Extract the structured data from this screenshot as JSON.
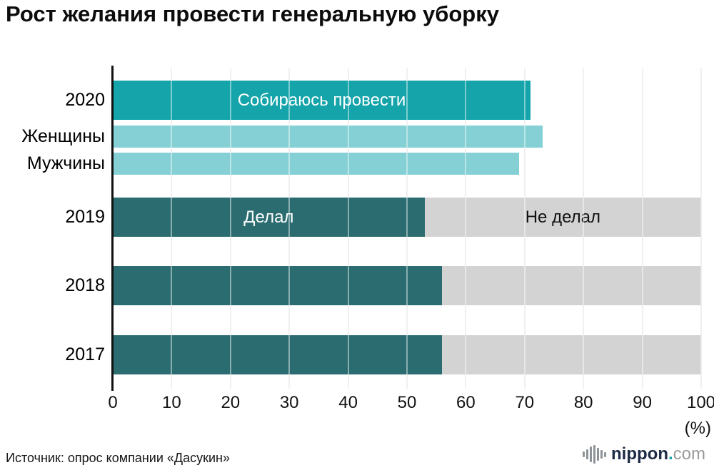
{
  "title": "Рост желания провести генеральную уборку",
  "source": "Источник: опрос компании «Дасукин»",
  "logo": {
    "icon": "soundwave-bars-icon",
    "name": "nippon",
    "dot": ".",
    "tld": "com"
  },
  "colors": {
    "plan_bar": "#14a4aa",
    "gender_bar": "#84d0d4",
    "done_bar": "#2a6c70",
    "remainder_bar": "#d3d3d3",
    "gridline": "#e4e4e4"
  },
  "chart_data": {
    "type": "bar",
    "orientation": "horizontal",
    "title": "Рост желания провести генеральную уборку",
    "xlabel": "(%)",
    "xlim": [
      0,
      100
    ],
    "xticks": [
      0,
      10,
      20,
      30,
      40,
      50,
      60,
      70,
      80,
      90,
      100
    ],
    "grid": true,
    "remainder_color": "#d3d3d3",
    "rows": [
      {
        "label": "2020",
        "value": 71,
        "bar_label": "Собираюсь провести",
        "color": "#14a4aa",
        "subrow": false,
        "show_remainder": false,
        "remainder_label": ""
      },
      {
        "label": "Женщины",
        "value": 73,
        "bar_label": "",
        "color": "#84d0d4",
        "subrow": true,
        "show_remainder": false,
        "remainder_label": ""
      },
      {
        "label": "Мужчины",
        "value": 69,
        "bar_label": "",
        "color": "#84d0d4",
        "subrow": true,
        "show_remainder": false,
        "remainder_label": ""
      },
      {
        "label": "2019",
        "value": 53,
        "bar_label": "Делал",
        "color": "#2a6c70",
        "subrow": false,
        "show_remainder": true,
        "remainder_label": "Не делал"
      },
      {
        "label": "2018",
        "value": 56,
        "bar_label": "",
        "color": "#2a6c70",
        "subrow": false,
        "show_remainder": true,
        "remainder_label": ""
      },
      {
        "label": "2017",
        "value": 56,
        "bar_label": "",
        "color": "#2a6c70",
        "subrow": false,
        "show_remainder": true,
        "remainder_label": ""
      }
    ]
  }
}
